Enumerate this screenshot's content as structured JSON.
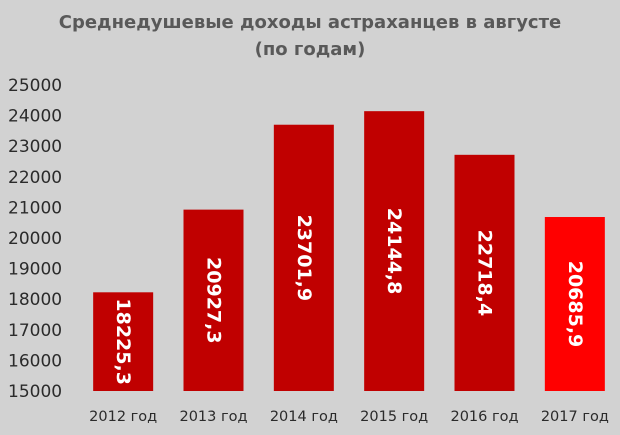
{
  "chart_data": {
    "type": "bar",
    "title": "Среднедушевые доходы астраханцев в августе",
    "subtitle": "(по годам)",
    "categories": [
      "2012 год",
      "2013 год",
      "2014 год",
      "2015 год",
      "2016 год",
      "2017 год"
    ],
    "values": [
      18225.3,
      20927.3,
      23701.9,
      24144.8,
      22718.4,
      20685.9
    ],
    "data_labels": [
      "18225,3",
      "20927,3",
      "23701,9",
      "24144,8",
      "22718,4",
      "20685,9"
    ],
    "yticks": [
      "15000",
      "16000",
      "17000",
      "18000",
      "19000",
      "20000",
      "21000",
      "22000",
      "23000",
      "24000",
      "25000"
    ],
    "ylim": [
      15000,
      25000
    ],
    "grid": false,
    "legend": "none",
    "colors": {
      "bar": "#c00000",
      "highlight_bar": "#ff0000",
      "background": "#d2d2d2",
      "title": "#595959",
      "label": "#ffffff"
    },
    "highlight_index": 5
  }
}
